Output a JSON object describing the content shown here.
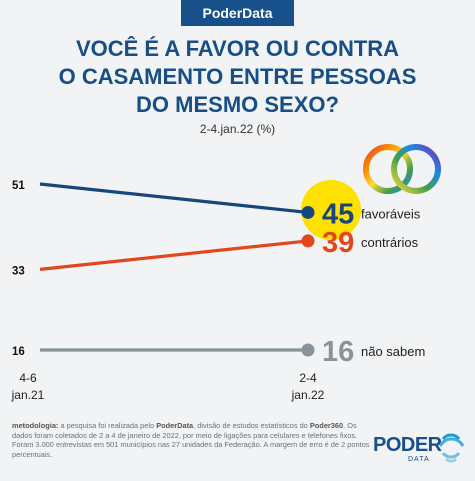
{
  "brand": "PoderData",
  "title_lines": [
    "VOCÊ É A FAVOR OU CONTRA",
    "O CASAMENTO ENTRE PESSOAS",
    "DO MESMO SEXO?"
  ],
  "subtitle": "2-4.jan.22 (%)",
  "colors": {
    "favoraveis": "#17467a",
    "contrarios": "#e2461a",
    "nao_sabem": "#8a9399",
    "highlight": "#ffe100",
    "title": "#174e85"
  },
  "chart_data": {
    "type": "line",
    "categories": [
      {
        "line1": "4-6",
        "line2": "jan.21"
      },
      {
        "line1": "2-4",
        "line2": "jan.22"
      }
    ],
    "series": [
      {
        "key": "favoraveis",
        "name": "favoráveis",
        "values": [
          51,
          45
        ],
        "labels": [
          "51",
          "45"
        ]
      },
      {
        "key": "contrarios",
        "name": "contrários",
        "values": [
          33,
          39
        ],
        "labels": [
          "33",
          "39"
        ]
      },
      {
        "key": "nao_sabem",
        "name": "não sabem",
        "values": [
          16,
          16
        ],
        "labels": [
          "16",
          "16"
        ]
      }
    ],
    "ylim": [
      10,
      55
    ],
    "grid": false,
    "legend": "end-of-line labels"
  },
  "methodology": {
    "label": "metodologia:",
    "text_1": " a pesquisa foi realizada pelo ",
    "poderdata": "PoderData",
    "text_2": ", divisão de estudos estatísticos do ",
    "poder360": "Poder360",
    "text_3": ". Os dados foram coletados de 2 a 4 de janeiro de 2022, por meio de ligações para celulares e telefones fixos. Foram 3.000 entrevistas em 501 municípios nas 27 unidades da Federação. A margem de erro é de 2 pontos percentuais."
  },
  "logo": {
    "word": "PODER",
    "sub": "DATA"
  }
}
